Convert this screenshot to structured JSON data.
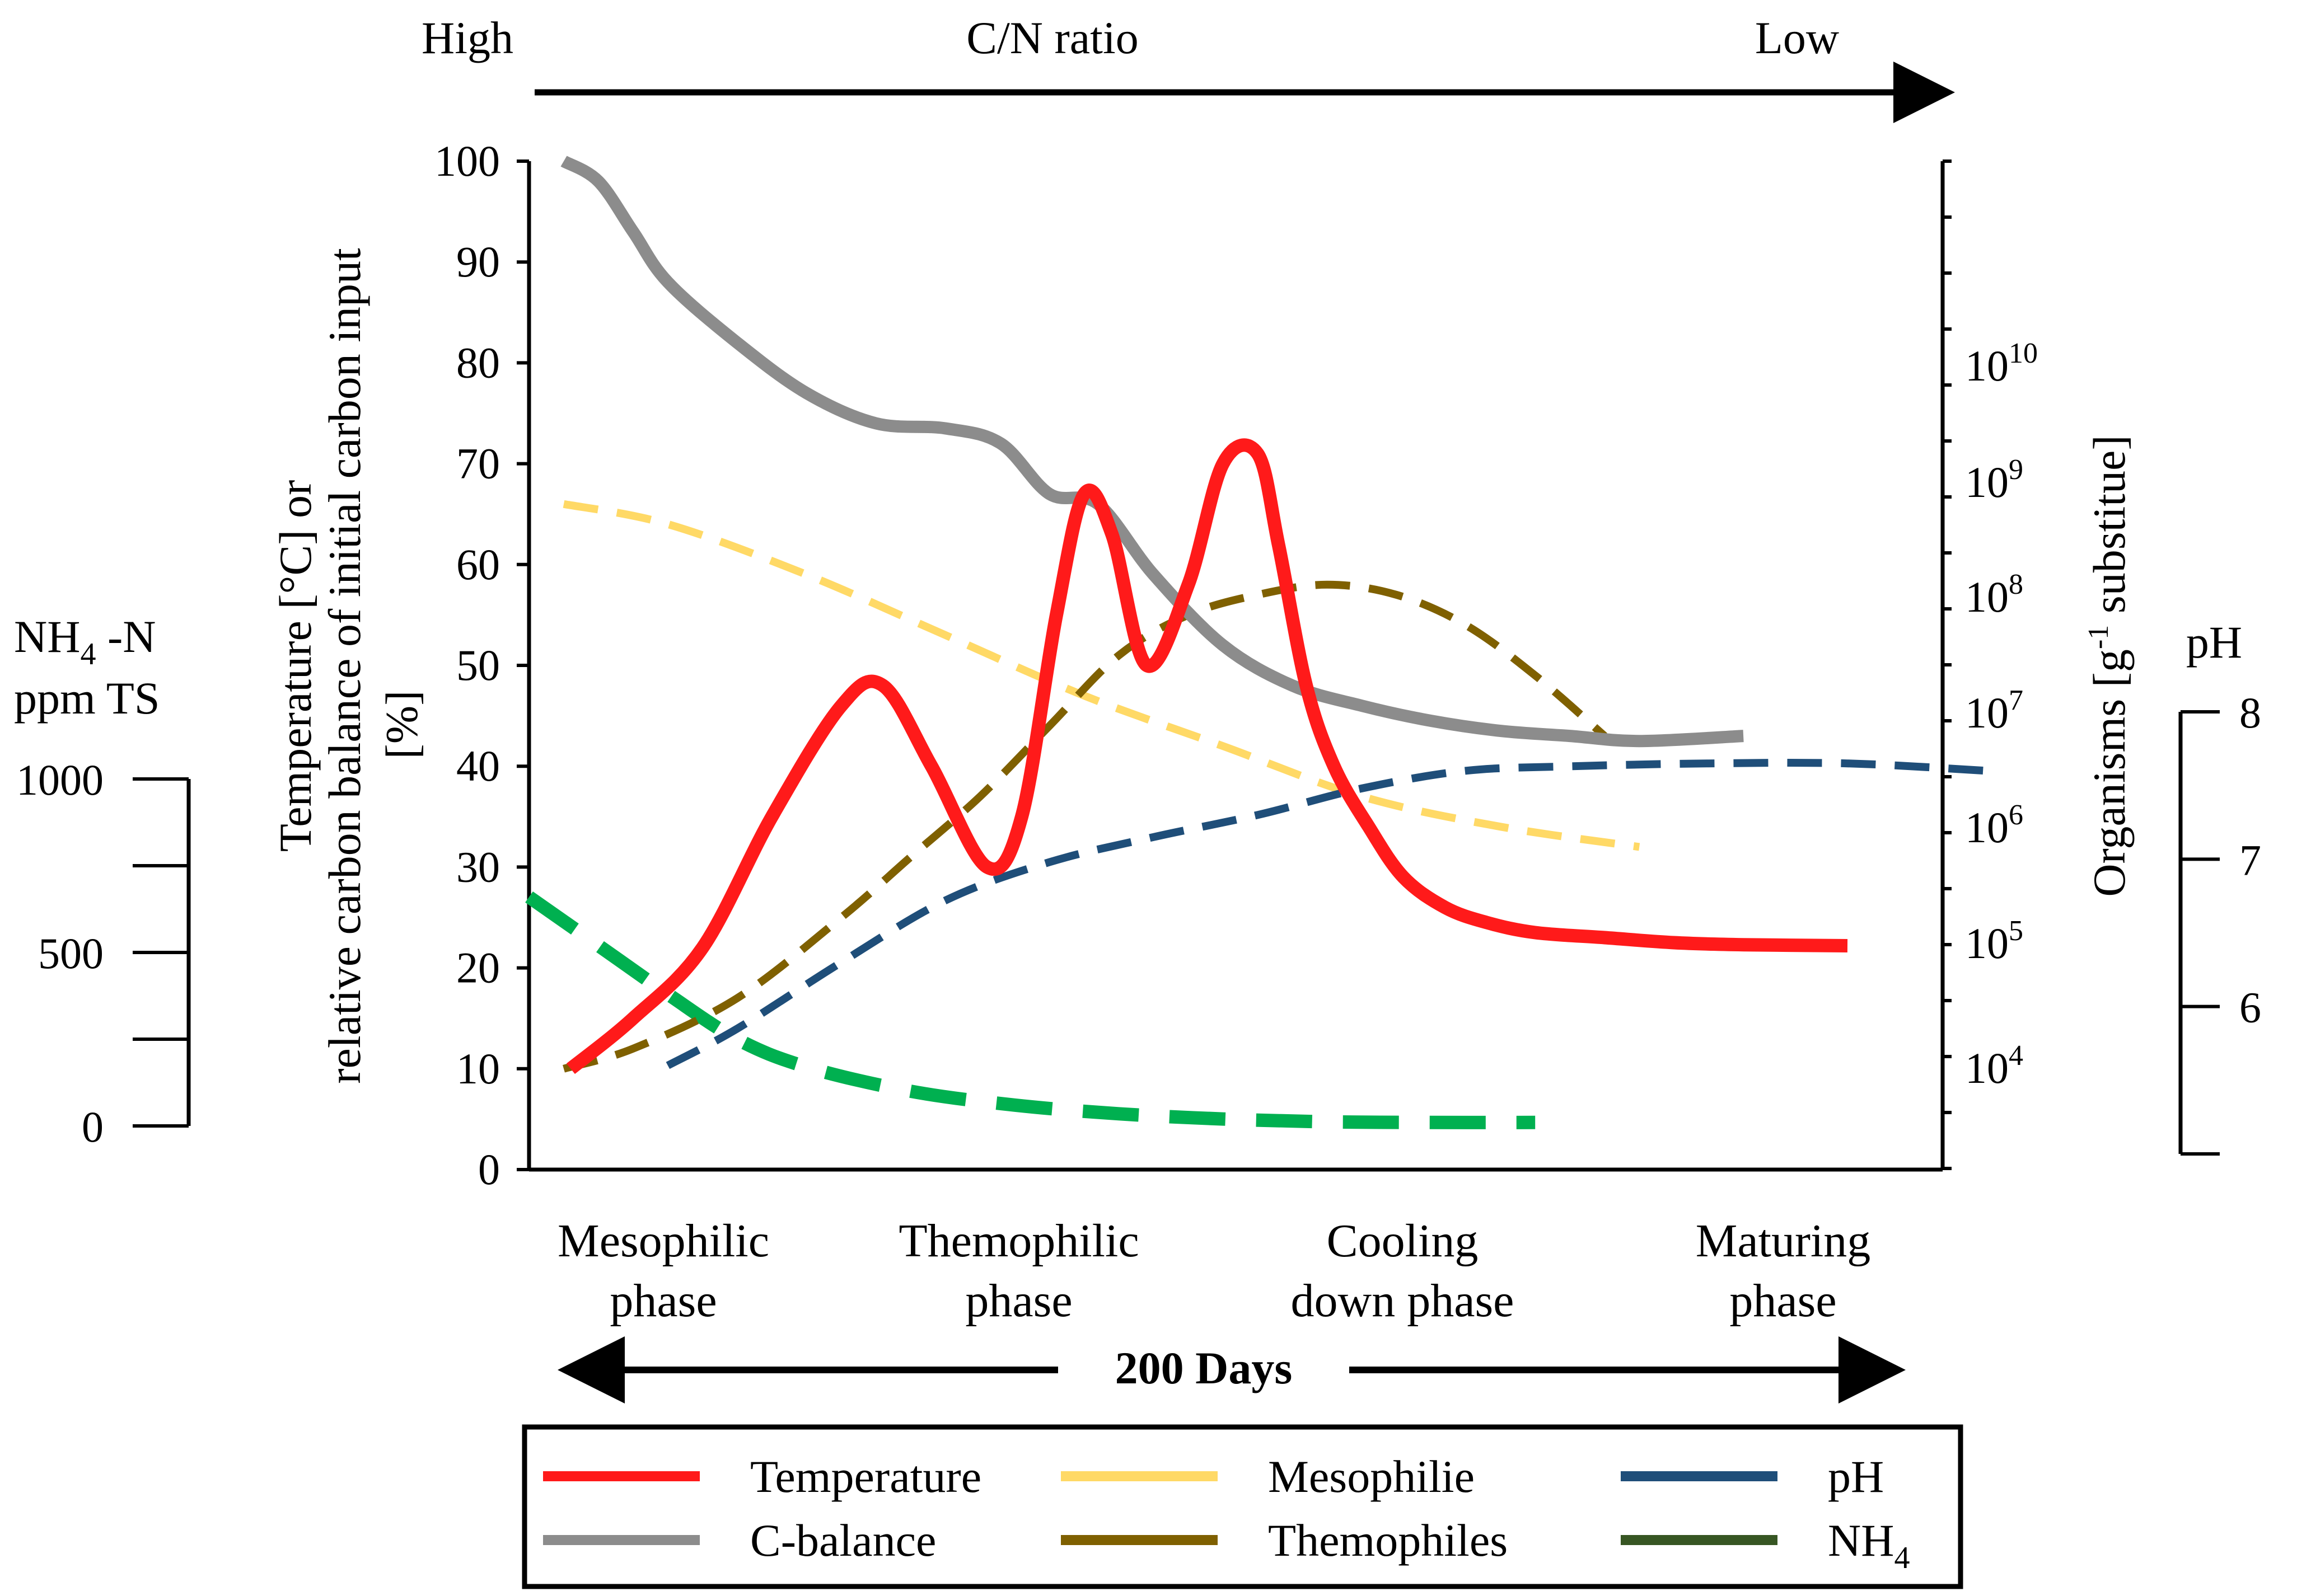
{
  "chart_data": {
    "type": "line",
    "title": "",
    "top_axis": {
      "left": "High",
      "center": "C/N ratio",
      "right": "Low"
    },
    "xlabel": "200 Days",
    "phases": [
      {
        "line1": "Mesophilic",
        "line2": "phase"
      },
      {
        "line1": "Themophilic",
        "line2": "phase"
      },
      {
        "line1": "Cooling",
        "line2": "down phase"
      },
      {
        "line1": "Maturing",
        "line2": "phase"
      }
    ],
    "x_range": [
      0,
      200
    ],
    "y_left": {
      "label_lines": [
        "Temperature [°C] or",
        "relative carbon balance of initial carbon input",
        "[%]"
      ],
      "range": [
        0,
        100
      ],
      "ticks": [
        "0",
        "10",
        "20",
        "30",
        "40",
        "50",
        "60",
        "70",
        "80",
        "90",
        "100"
      ]
    },
    "y_right": {
      "label_prefix": "Organisms [g",
      "label_sup": "-1",
      "label_suffix": " substitue]",
      "tick_exponents": [
        "4",
        "5",
        "6",
        "7",
        "8",
        "9",
        "10"
      ]
    },
    "y_nh4": {
      "label_line1": "NH",
      "label_sub": "4",
      "label_line1_suffix": " -N",
      "label_line2": "ppm TS",
      "range": [
        0,
        1000
      ],
      "ticks": [
        "0",
        "500",
        "1000"
      ]
    },
    "y_ph": {
      "label": "pH",
      "range": [
        5,
        8
      ],
      "ticks": [
        "6",
        "7",
        "8"
      ]
    },
    "series": [
      {
        "name": "Temperature",
        "axis": "left",
        "color": "#ff1a1a",
        "dash": "solid",
        "x": [
          6,
          15,
          25,
          35,
          45,
          51,
          58,
          66,
          71,
          76,
          80,
          84,
          89,
          95,
          100,
          105,
          108,
          112,
          116,
          121,
          126,
          132,
          138,
          145,
          155,
          165,
          175,
          190
        ],
        "y": [
          10,
          15,
          22,
          35,
          46,
          48,
          40,
          30,
          35,
          55,
          67,
          63,
          50,
          58,
          70,
          71,
          62,
          48,
          40,
          34,
          29,
          26,
          24.5,
          23.5,
          23,
          22.5,
          22.3,
          22.2
        ]
      },
      {
        "name": "C-balance",
        "axis": "left",
        "color": "#8c8c8c",
        "dash": "solid",
        "x": [
          5,
          10,
          15,
          20,
          30,
          40,
          50,
          60,
          68,
          75,
          82,
          90,
          100,
          110,
          120,
          130,
          140,
          150,
          160,
          175
        ],
        "y": [
          100,
          98,
          93,
          88,
          82,
          77,
          74,
          73.5,
          72,
          67,
          66,
          59,
          52,
          48,
          46,
          44.5,
          43.5,
          43,
          42.5,
          43
        ]
      },
      {
        "name": "Mesophilie",
        "axis": "right",
        "color": "#ffd966",
        "dash": "dashed",
        "x": [
          5,
          20,
          40,
          60,
          80,
          100,
          120,
          140,
          160
        ],
        "y": [
          66,
          64,
          59,
          53,
          47,
          42,
          37,
          34,
          32
        ]
      },
      {
        "name": "Themophiles",
        "axis": "right",
        "color": "#7f6000",
        "dash": "dashed",
        "x": [
          5,
          15,
          30,
          45,
          55,
          65,
          75,
          85,
          95,
          105,
          115,
          125,
          135,
          145,
          155
        ],
        "y": [
          10,
          12,
          17,
          25,
          31,
          37,
          44,
          51,
          55,
          57,
          58,
          57,
          54,
          49,
          43
        ]
      },
      {
        "name": "pH",
        "axis": "ph",
        "color": "#1f4e79",
        "dash": "dashed",
        "x": [
          20,
          30,
          45,
          60,
          75,
          90,
          105,
          120,
          135,
          150,
          170,
          190,
          210
        ],
        "y": [
          5.6,
          5.85,
          6.3,
          6.72,
          6.98,
          7.15,
          7.3,
          7.48,
          7.6,
          7.63,
          7.65,
          7.65,
          7.6
        ]
      },
      {
        "name": "NH4",
        "legend_label": "NH",
        "legend_sub": "4",
        "axis": "nh4",
        "color": "#00b050",
        "legend_color": "#375623",
        "dash": "dashed",
        "x": [
          0,
          10,
          20,
          30,
          40,
          55,
          70,
          85,
          100,
          115,
          130,
          145
        ],
        "y": [
          660,
          520,
          380,
          250,
          170,
          100,
          60,
          35,
          20,
          12,
          10,
          10
        ]
      }
    ],
    "legend": {
      "position": "bottom",
      "columns": [
        [
          "Temperature",
          "C-balance"
        ],
        [
          "Mesophilie",
          "Themophiles"
        ],
        [
          "pH",
          "NH4"
        ]
      ]
    }
  }
}
